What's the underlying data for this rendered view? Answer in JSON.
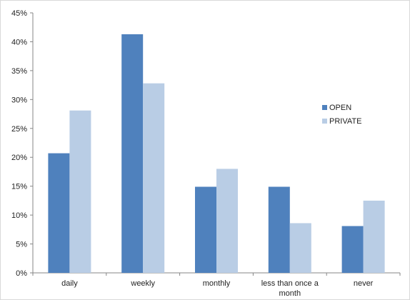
{
  "chart_data": {
    "type": "bar",
    "categories": [
      "daily",
      "weekly",
      "monthly",
      "less than once a month",
      "never"
    ],
    "category_lines": [
      [
        "daily"
      ],
      [
        "weekly"
      ],
      [
        "monthly"
      ],
      [
        "less than once a",
        "month"
      ],
      [
        "never"
      ]
    ],
    "series": [
      {
        "name": "OPEN",
        "values": [
          20.7,
          41.3,
          14.9,
          14.9,
          8.1
        ],
        "color": "#4f81bd"
      },
      {
        "name": "PRIVATE",
        "values": [
          28.1,
          32.8,
          18.0,
          8.6,
          12.5
        ],
        "color": "#b9cde5"
      }
    ],
    "ylim": [
      0,
      45
    ],
    "yticks": [
      "0%",
      "5%",
      "10%",
      "15%",
      "20%",
      "25%",
      "30%",
      "35%",
      "40%",
      "45%"
    ],
    "title": "",
    "xlabel": "",
    "ylabel": "",
    "grid": false,
    "legend_position": "right"
  }
}
